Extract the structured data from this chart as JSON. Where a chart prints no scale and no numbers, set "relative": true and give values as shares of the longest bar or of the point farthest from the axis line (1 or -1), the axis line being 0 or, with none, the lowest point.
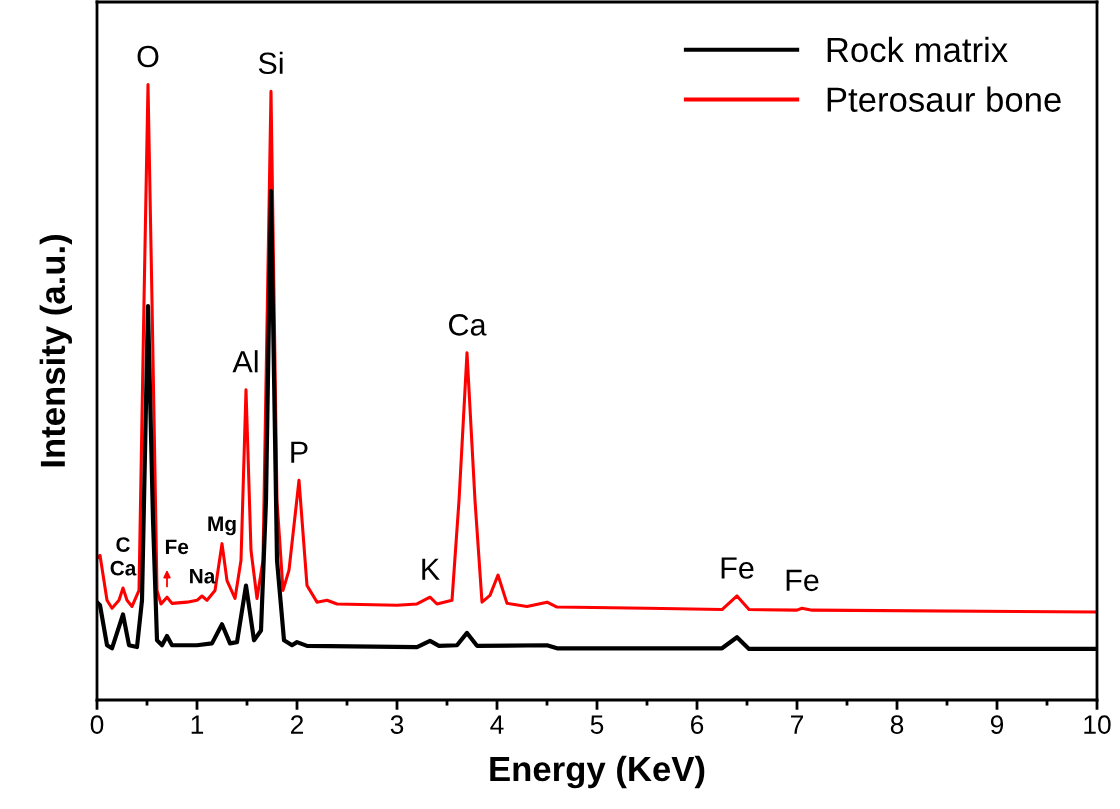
{
  "chart_data": {
    "type": "line",
    "relative": true,
    "xlabel": "Energy (KeV)",
    "ylabel": "Intensity (a.u.)",
    "xlim": [
      0,
      10
    ],
    "xticks": [
      0,
      1,
      2,
      3,
      4,
      5,
      6,
      7,
      8,
      9,
      10
    ],
    "tick_labels": "x",
    "legend": "top right",
    "grid": false,
    "marker": "none",
    "line_style": "solid",
    "series": [
      {
        "name": "Rock matrix",
        "color": "#000000",
        "x": [
          0,
          0.03,
          0.1,
          0.15,
          0.26,
          0.32,
          0.4,
          0.45,
          0.51,
          0.56,
          0.6,
          0.65,
          0.7,
          0.75,
          1.0,
          1.15,
          1.25,
          1.33,
          1.4,
          1.49,
          1.57,
          1.64,
          1.69,
          1.74,
          1.8,
          1.87,
          1.95,
          2.0,
          2.1,
          3.2,
          3.33,
          3.42,
          3.6,
          3.7,
          3.8,
          4.5,
          4.6,
          6.25,
          6.4,
          6.52,
          10
        ],
        "values": [
          0.159,
          0.154,
          0.089,
          0.084,
          0.139,
          0.089,
          0.086,
          0.162,
          0.64,
          0.292,
          0.097,
          0.089,
          0.104,
          0.089,
          0.089,
          0.092,
          0.123,
          0.092,
          0.094,
          0.186,
          0.097,
          0.113,
          0.324,
          0.827,
          0.227,
          0.097,
          0.089,
          0.094,
          0.088,
          0.086,
          0.096,
          0.088,
          0.089,
          0.109,
          0.088,
          0.089,
          0.084,
          0.084,
          0.102,
          0.083,
          0.083
        ]
      },
      {
        "name": "Pterosaur bone",
        "color": "#ff0000",
        "x": [
          0,
          0.03,
          0.1,
          0.15,
          0.22,
          0.26,
          0.3,
          0.35,
          0.42,
          0.47,
          0.51,
          0.55,
          0.6,
          0.64,
          0.7,
          0.75,
          0.9,
          1.0,
          1.05,
          1.1,
          1.18,
          1.25,
          1.3,
          1.38,
          1.44,
          1.49,
          1.54,
          1.6,
          1.66,
          1.74,
          1.8,
          1.86,
          1.92,
          2.02,
          2.1,
          2.2,
          2.3,
          2.4,
          3.0,
          3.2,
          3.33,
          3.4,
          3.55,
          3.62,
          3.7,
          3.78,
          3.85,
          3.93,
          4.01,
          4.1,
          4.3,
          4.5,
          4.6,
          5.5,
          6.25,
          6.4,
          6.52,
          7.0,
          7.05,
          7.15,
          10
        ],
        "values": [
          0.23,
          0.235,
          0.162,
          0.149,
          0.162,
          0.182,
          0.162,
          0.152,
          0.178,
          0.648,
          1.0,
          0.648,
          0.178,
          0.156,
          0.167,
          0.157,
          0.159,
          0.162,
          0.169,
          0.162,
          0.178,
          0.254,
          0.194,
          0.165,
          0.227,
          0.504,
          0.243,
          0.165,
          0.227,
          0.989,
          0.324,
          0.178,
          0.211,
          0.357,
          0.186,
          0.159,
          0.162,
          0.156,
          0.154,
          0.156,
          0.167,
          0.156,
          0.162,
          0.324,
          0.564,
          0.324,
          0.159,
          0.17,
          0.203,
          0.157,
          0.152,
          0.159,
          0.151,
          0.149,
          0.147,
          0.169,
          0.147,
          0.146,
          0.149,
          0.146,
          0.143
        ]
      }
    ],
    "annotations": [
      {
        "text": "O",
        "x": 0.51,
        "y": 1.0
      },
      {
        "text": "Si",
        "x": 1.74,
        "y": 0.989
      },
      {
        "text": "Al",
        "x": 1.49,
        "y": 0.504
      },
      {
        "text": "P",
        "x": 2.02,
        "y": 0.357
      },
      {
        "text": "Ca",
        "x": 3.7,
        "y": 0.564
      },
      {
        "text": "K",
        "x": 3.33,
        "y": 0.167
      },
      {
        "text": "Fe",
        "x": 6.4,
        "y": 0.169
      },
      {
        "text": "Fe",
        "x": 7.05,
        "y": 0.149
      },
      {
        "text": "C",
        "x": 0.26,
        "y": 0.182
      },
      {
        "text": "Ca",
        "x": 0.26,
        "y": 0.182
      },
      {
        "text": "Fe",
        "x": 0.7,
        "y": 0.167
      },
      {
        "text": "Na",
        "x": 1.05,
        "y": 0.169
      },
      {
        "text": "Mg",
        "x": 1.25,
        "y": 0.254
      }
    ]
  }
}
